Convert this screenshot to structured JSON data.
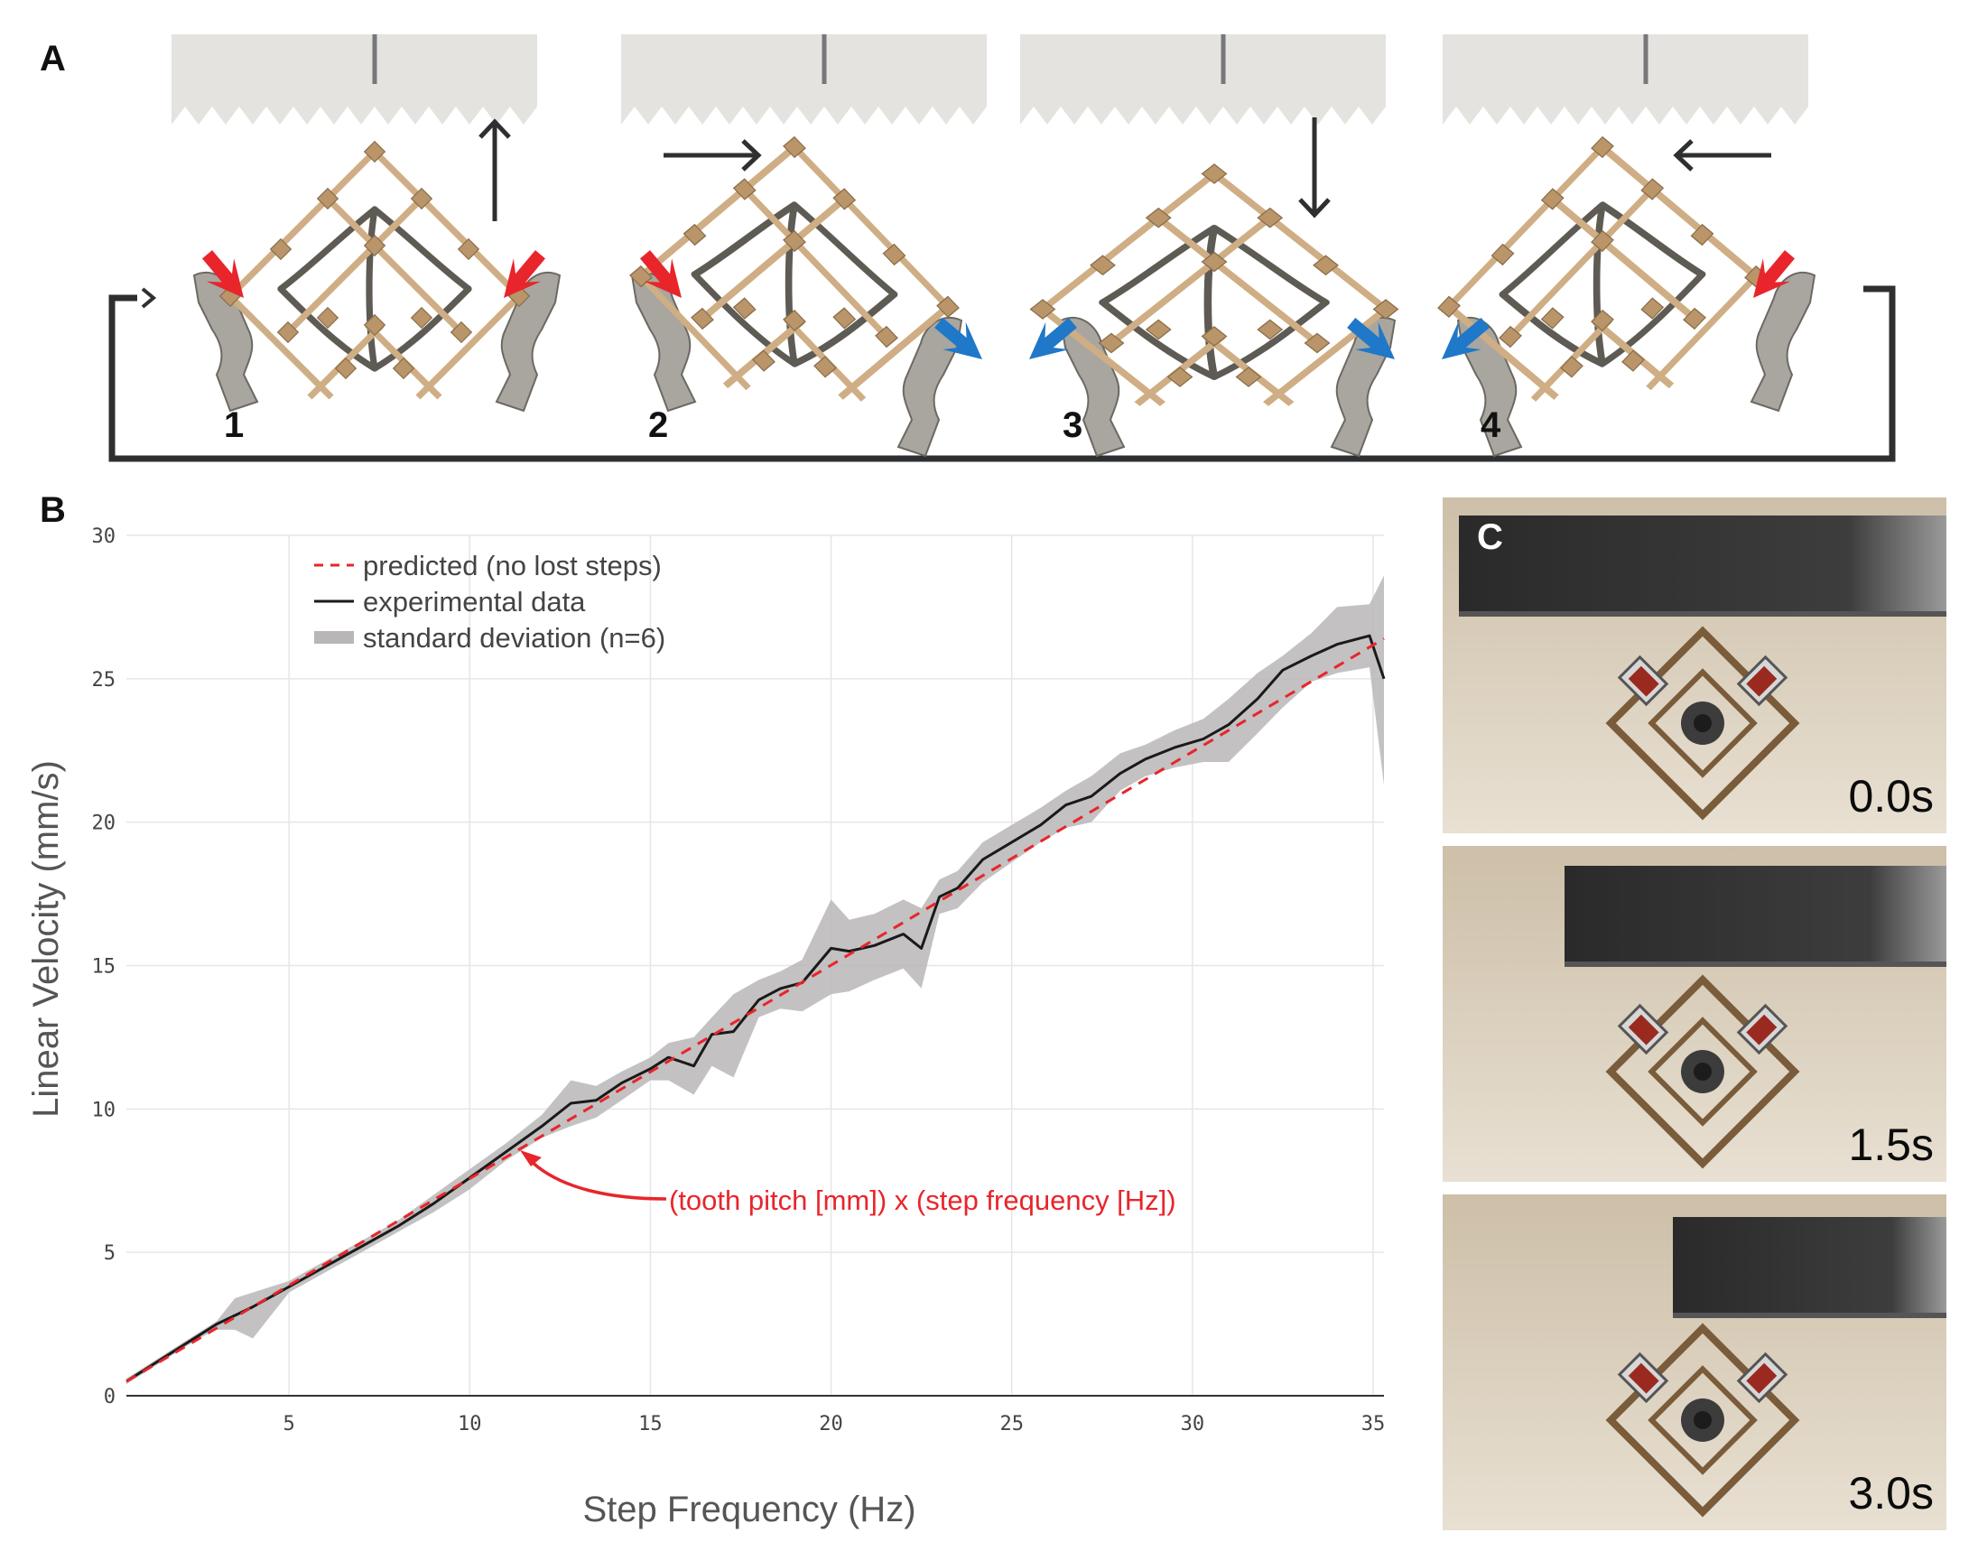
{
  "panels": {
    "a_label": "A",
    "b_label": "B",
    "c_label": "C"
  },
  "panel_a": {
    "steps": [
      "1",
      "2",
      "3",
      "4"
    ],
    "colors": {
      "force_in": "#e8252b",
      "force_out": "#1f78c8",
      "lattice": "#d4b48a",
      "rack": "#e4e3e0",
      "cycle_line": "#2e2f31"
    }
  },
  "panel_c": {
    "times": [
      "0.0s",
      "1.5s",
      "3.0s"
    ]
  },
  "chart_data": {
    "type": "line",
    "xlabel": "Step Frequency (Hz)",
    "ylabel": "Linear Velocity (mm/s)",
    "xlim": [
      0.5,
      35.3
    ],
    "ylim": [
      0,
      30
    ],
    "x_ticks": [
      5,
      10,
      15,
      20,
      25,
      30,
      35
    ],
    "y_ticks": [
      0,
      5,
      10,
      15,
      20,
      25,
      30
    ],
    "grid": true,
    "legend_position": "top-left",
    "legend": [
      "predicted (no lost steps)",
      "experimental data",
      "standard deviation (n=6)"
    ],
    "annotation": "(tooth pitch [mm]) x (step frequency [Hz])",
    "colors": {
      "predicted": "#e8252b",
      "experimental": "#1a1a1a",
      "std": "#b8b6b6",
      "annotation": "#e8252b"
    },
    "series": [
      {
        "name": "predicted (no lost steps)",
        "x": [
          0.5,
          35.3
        ],
        "y": [
          0.5,
          26.4
        ]
      },
      {
        "name": "experimental data",
        "x": [
          0.5,
          1,
          1.5,
          2,
          2.5,
          3,
          3.5,
          4,
          5,
          6,
          7,
          8,
          9,
          10,
          11,
          12,
          12.8,
          13.5,
          14.2,
          15,
          15.5,
          16.2,
          16.7,
          17.3,
          18,
          18.6,
          19.2,
          20,
          20.5,
          21.2,
          22,
          22.5,
          23,
          23.5,
          24.2,
          25,
          25.8,
          26.5,
          27.2,
          28,
          28.7,
          29.5,
          30.3,
          31,
          31.8,
          32.5,
          33.3,
          34,
          34.9,
          35.3
        ],
        "y": [
          0.5,
          0.9,
          1.3,
          1.7,
          2.1,
          2.5,
          2.8,
          3.1,
          3.8,
          4.5,
          5.2,
          5.9,
          6.7,
          7.6,
          8.5,
          9.4,
          10.2,
          10.3,
          10.9,
          11.4,
          11.8,
          11.5,
          12.6,
          12.7,
          13.8,
          14.2,
          14.4,
          15.6,
          15.5,
          15.7,
          16.1,
          15.6,
          17.4,
          17.7,
          18.7,
          19.3,
          19.9,
          20.6,
          20.9,
          21.7,
          22.2,
          22.6,
          22.9,
          23.4,
          24.3,
          25.3,
          25.8,
          26.2,
          26.5,
          25.0
        ]
      }
    ],
    "std_band": {
      "x": [
        0.5,
        1,
        1.5,
        2,
        2.5,
        3,
        3.5,
        4,
        5,
        6,
        7,
        8,
        9,
        10,
        11,
        12,
        12.8,
        13.5,
        14.2,
        15,
        15.5,
        16.2,
        16.7,
        17.3,
        18,
        18.6,
        19.2,
        20,
        20.5,
        21.2,
        22,
        22.5,
        23,
        23.5,
        24.2,
        25,
        25.8,
        26.5,
        27.2,
        28,
        28.7,
        29.5,
        30.3,
        31,
        31.8,
        32.5,
        33.3,
        34,
        34.9,
        35.3
      ],
      "upper": [
        0.6,
        1.0,
        1.4,
        1.8,
        2.2,
        2.6,
        3.4,
        3.6,
        4.0,
        4.7,
        5.4,
        6.1,
        7.0,
        7.9,
        8.8,
        9.8,
        11.0,
        10.8,
        11.3,
        11.8,
        12.3,
        12.5,
        13.2,
        14.0,
        14.5,
        14.8,
        15.2,
        17.3,
        16.6,
        16.8,
        17.3,
        17.0,
        18.0,
        18.3,
        19.3,
        19.9,
        20.5,
        21.1,
        21.6,
        22.4,
        22.7,
        23.2,
        23.6,
        24.3,
        25.2,
        25.8,
        26.6,
        27.5,
        27.6,
        28.6
      ],
      "lower": [
        0.4,
        0.8,
        1.2,
        1.6,
        2.0,
        2.3,
        2.3,
        2.0,
        3.6,
        4.3,
        5.0,
        5.7,
        6.4,
        7.2,
        8.2,
        9.0,
        9.4,
        9.7,
        10.3,
        11.0,
        11.0,
        10.5,
        11.5,
        11.1,
        13.2,
        13.5,
        13.4,
        14.0,
        14.1,
        14.5,
        14.9,
        14.2,
        16.8,
        17.0,
        17.9,
        18.6,
        19.3,
        19.8,
        20.0,
        21.1,
        21.6,
        21.9,
        22.1,
        22.1,
        23.1,
        24.0,
        24.9,
        25.2,
        25.4,
        21.3
      ]
    }
  }
}
